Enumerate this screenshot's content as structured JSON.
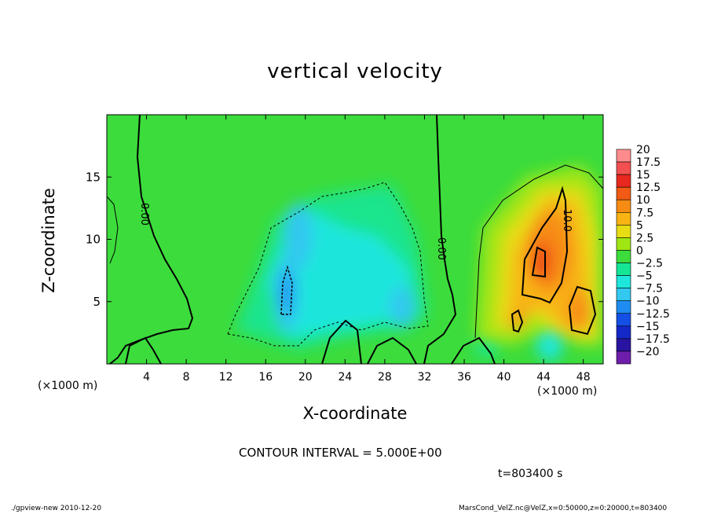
{
  "chart_data": {
    "type": "heatmap",
    "title": "vertical velocity",
    "xlabel": "X-coordinate",
    "ylabel": "Z-coordinate",
    "x_unit_left": "(×1000 m)",
    "x_unit_right": "(×1000 m)",
    "xlim": [
      0,
      50
    ],
    "ylim": [
      0,
      20
    ],
    "x_ticks": [
      4,
      8,
      12,
      16,
      20,
      24,
      28,
      32,
      36,
      40,
      44,
      48
    ],
    "y_ticks": [
      5,
      10,
      15
    ],
    "colorbar": {
      "levels": [
        "20",
        "17.5",
        "15",
        "12.5",
        "10",
        "7.5",
        "5",
        "2.5",
        "0",
        "−2.5",
        "−5",
        "−7.5",
        "−10",
        "−12.5",
        "−15",
        "−17.5",
        "−20"
      ],
      "colors": [
        "#ff8c8c",
        "#f25050",
        "#e8281e",
        "#f05a14",
        "#f78c14",
        "#f8b414",
        "#e8dc14",
        "#a0e614",
        "#3cdc3c",
        "#14e696",
        "#1ee6dc",
        "#32c8f0",
        "#1e8cf0",
        "#1450e6",
        "#1428c8",
        "#2814a0",
        "#6e1eaa"
      ]
    },
    "contour_labels": [
      "0.00",
      "0.00",
      "10.0"
    ],
    "contour_interval": "CONTOUR INTERVAL = 5.000E+00",
    "time": "t=803400 s"
  },
  "footer": {
    "left": "./gpview-new   2010-12-20",
    "right": "MarsCond_VelZ.nc@VelZ,x=0:50000,z=0:20000,t=803400"
  }
}
